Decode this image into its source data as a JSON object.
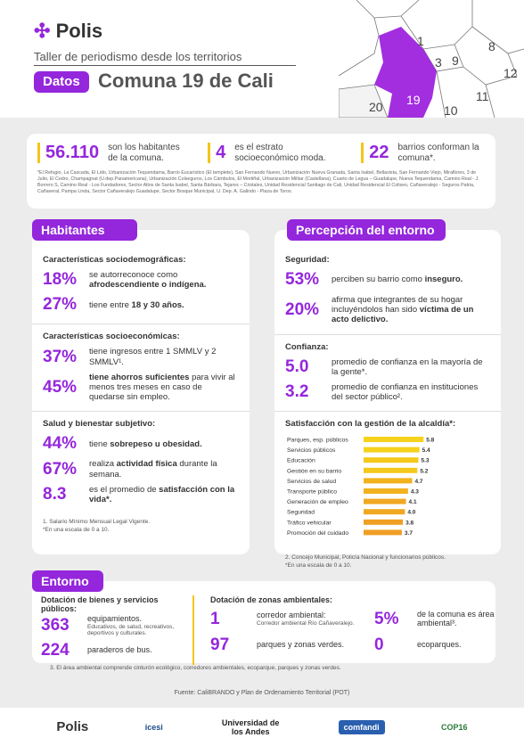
{
  "header": {
    "brand": "Polis",
    "subtitle": "Taller de periodismo desde los territorios",
    "tag": "Datos",
    "title": "Comuna 19 de Cali",
    "map_labels": [
      "1",
      "3",
      "8",
      "9",
      "12",
      "11",
      "19",
      "20",
      "10"
    ]
  },
  "summary": {
    "items": [
      {
        "value": "56.110",
        "text": "son los habitantes de la comuna."
      },
      {
        "value": "4",
        "text": "es el estrato socioeconómico moda."
      },
      {
        "value": "22",
        "text": "barrios conforman la comuna*."
      }
    ],
    "footnote": "*El Refugio, La Cascada, El Lido, Urbanización Tequendama, Barrio Eucarístico (El templete), San Fernando Nuevo, Urbanización Nueva Granada, Santa Isabel, Bellavista, San Fernando Viejo, Miraflores, 3 de Julio, El Cedro, Champagnat (U.dep.Panamericana), Urbanización Colseguros, Los Cámbulos, El Mortiñal, Urbanización Militar (Castellana), Cuarto de Legua – Guadalupe, Nueva Tequendama, Camino Real - J. Borrero S, Camino Real - Los Fundadores, Sector Altos de Santa Isabel, Santa Bárbara, Tejares – Cristales, Unidad Residencial Santiago de Cali, Unidad Residencial El Coliseo, Cañaveralejo - Seguros Patria, Cañaveral, Pampa Linda, Sector Cañaveralejo Guadalupe, Sector Bosque Municipal, U. Dep. A. Galindo - Plaza de Toros."
  },
  "habitantes": {
    "title": "Habitantes",
    "sections": [
      {
        "heading": "Características sociodemográficas:",
        "items": [
          {
            "value": "18%",
            "parts": [
              {
                "text": "se autorreconoce como "
              },
              {
                "text": "afrodescendiente o indígena.",
                "bold": true
              }
            ]
          },
          {
            "value": "27%",
            "parts": [
              {
                "text": "tiene entre "
              },
              {
                "text": "18 y 30 años.",
                "bold": true
              }
            ]
          }
        ]
      },
      {
        "heading": "Características socioeconómicas:",
        "items": [
          {
            "value": "37%",
            "parts": [
              {
                "text": "tiene ingresos entre 1 SMMLV y 2 SMMLV¹."
              }
            ]
          },
          {
            "value": "45%",
            "parts": [
              {
                "text": "tiene ahorros suficientes",
                "bold": true
              },
              {
                "text": " para vivir al menos tres meses en caso de quedarse sin empleo."
              }
            ]
          }
        ]
      },
      {
        "heading": "Salud y bienestar subjetivo:",
        "items": [
          {
            "value": "44%",
            "parts": [
              {
                "text": "tiene "
              },
              {
                "text": "sobrepeso u obesidad.",
                "bold": true
              }
            ]
          },
          {
            "value": "67%",
            "parts": [
              {
                "text": "realiza "
              },
              {
                "text": "actividad física",
                "bold": true
              },
              {
                "text": " durante la semana."
              }
            ]
          },
          {
            "value": "8.3",
            "parts": [
              {
                "text": "es el promedio de "
              },
              {
                "text": "satisfacción con la vida*.",
                "bold": true
              }
            ]
          }
        ]
      }
    ],
    "notes": [
      "1. Salario Mínimo Mensual Legal Vigente.",
      "*En una escala de 0 a 10."
    ]
  },
  "percepcion": {
    "title": "Percepción del entorno",
    "sections": [
      {
        "heading": "Seguridad:",
        "items": [
          {
            "value": "53%",
            "parts": [
              {
                "text": "perciben su barrio como "
              },
              {
                "text": "inseguro.",
                "bold": true
              }
            ]
          },
          {
            "value": "20%",
            "parts": [
              {
                "text": "afirma que integrantes de su hogar incluyéndolos han sido "
              },
              {
                "text": "víctima de un acto delictivo.",
                "bold": true
              }
            ]
          }
        ]
      },
      {
        "heading": "Confianza:",
        "items": [
          {
            "value": "5.0",
            "parts": [
              {
                "text": "promedio de confianza en la mayoría de la gente*."
              }
            ]
          },
          {
            "value": "3.2",
            "parts": [
              {
                "text": "promedio de confianza en instituciones del sector público²."
              }
            ]
          }
        ]
      }
    ],
    "notes": [
      "2. Concejo Municipal, Policía Nacional y funcionarios públicos.",
      "*En una escala de 0 a 10."
    ]
  },
  "chart_data": {
    "type": "bar",
    "orientation": "horizontal",
    "title": "Satisfacción con la gestión de la alcaldía*:",
    "categories": [
      "Parques, esp. públicos",
      "Servicios públicos",
      "Educación",
      "Gestión en su barrio",
      "Servicios de salud",
      "Transporte público",
      "Generación de empleo",
      "Seguridad",
      "Tráfico vehicular",
      "Promoción del cuidado"
    ],
    "values": [
      5.8,
      5.4,
      5.3,
      5.2,
      4.7,
      4.3,
      4.1,
      4.0,
      3.8,
      3.7
    ],
    "value_labels": [
      "5.8",
      "5.4",
      "5.3",
      "5.2",
      "4.7",
      "4.3",
      "4.1",
      "4.0",
      "3.8",
      "3.7"
    ],
    "colors": [
      "#f6d21c",
      "#f6d21c",
      "#f5c81c",
      "#f5c81c",
      "#f2b21e",
      "#f2b21e",
      "#f0a822",
      "#f0a822",
      "#ef9f24",
      "#ef9f24"
    ],
    "xlim": [
      0,
      10
    ]
  },
  "entorno": {
    "title": "Entorno",
    "left": {
      "heading": "Dotación de bienes y servicios públicos:",
      "items": [
        {
          "value": "363",
          "text": "equipamientos.",
          "small": "Educativos, de salud, recreativos, deportivos y culturales."
        },
        {
          "value": "224",
          "text": "paraderos de bus."
        }
      ]
    },
    "right": {
      "heading": "Dotación de zonas ambientales:",
      "items": [
        {
          "value": "1",
          "text": "corredor ambiental:",
          "small": "Corredor ambiental Río Cañaveralejo."
        },
        {
          "value": "5%",
          "text": "de la comuna es área ambiental³."
        },
        {
          "value": "97",
          "text": "parques y zonas verdes."
        },
        {
          "value": "0",
          "text": "ecoparques."
        }
      ]
    },
    "note": "3. El área ambiental comprende cinturón ecológico, corredores ambientales, ecoparque, parques y zonas verdes."
  },
  "source": "Fuente: CaliBRANDO y Plan de Ordenamiento Territorial (POT)",
  "footer": {
    "logos": [
      "Polis",
      "icesi",
      "Universidad de los Andes",
      "comfandi",
      "COP16"
    ]
  }
}
